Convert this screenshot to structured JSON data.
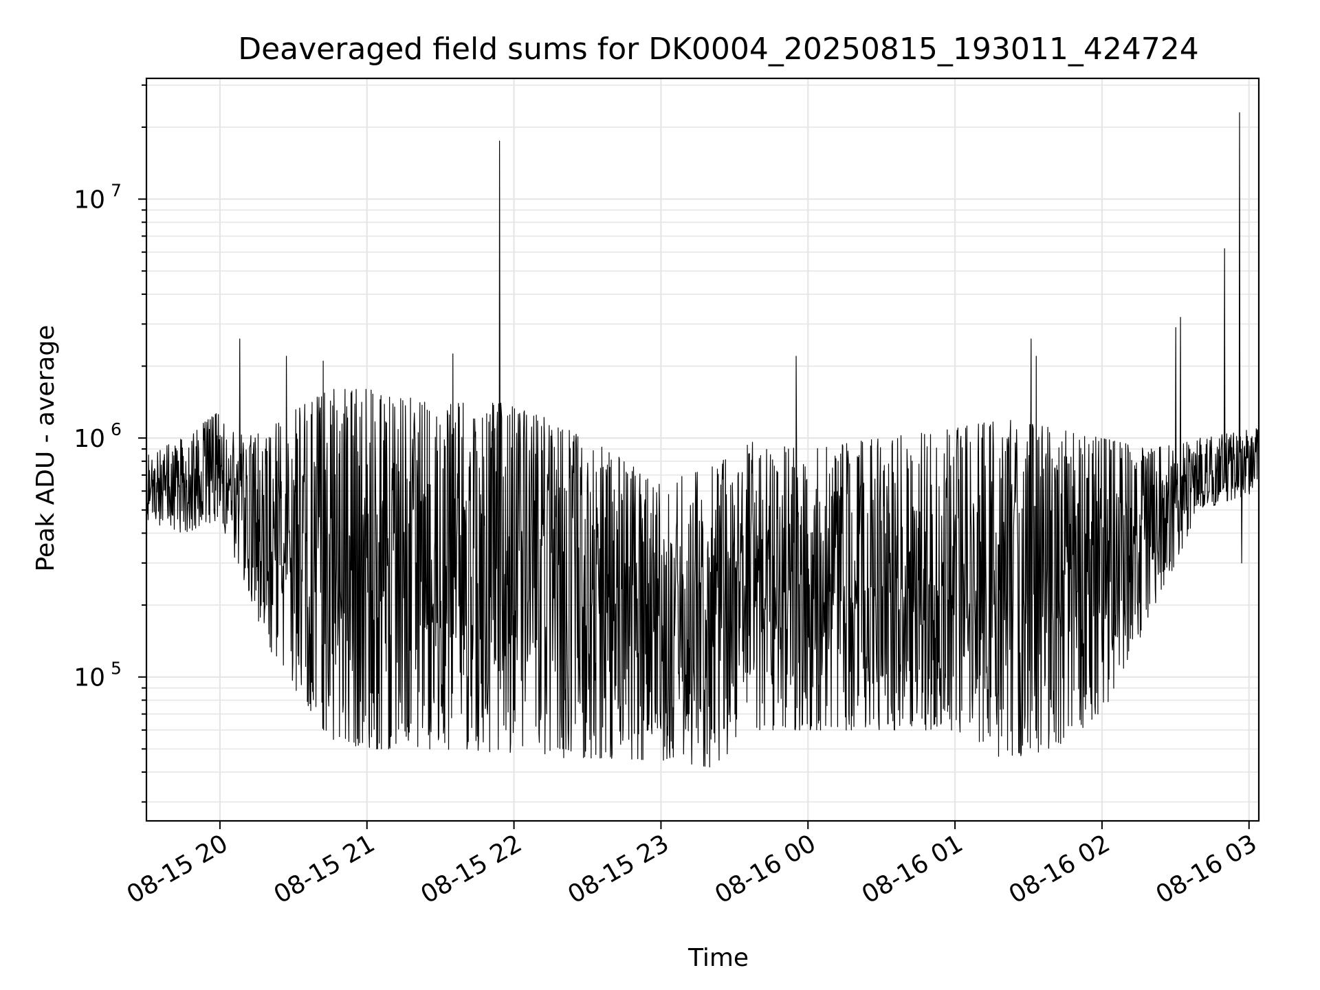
{
  "chart_data": {
    "type": "line",
    "title": "Deaveraged field sums for DK0004_20250815_193011_424724",
    "xlabel": "Time",
    "ylabel": "Peak ADU - average",
    "xlim": [
      "2025-08-15 19:30",
      "2025-08-16 03:04"
    ],
    "ylim": [
      25000,
      32000000
    ],
    "yscale": "log",
    "grid": true,
    "line_color": "#000000",
    "grid_color": "#e6e6e6",
    "x_ticks": [
      {
        "t": "2025-08-15 20:00",
        "label": "08-15 20"
      },
      {
        "t": "2025-08-15 21:00",
        "label": "08-15 21"
      },
      {
        "t": "2025-08-15 22:00",
        "label": "08-15 22"
      },
      {
        "t": "2025-08-15 23:00",
        "label": "08-15 23"
      },
      {
        "t": "2025-08-16 00:00",
        "label": "08-16 00"
      },
      {
        "t": "2025-08-16 01:00",
        "label": "08-16 01"
      },
      {
        "t": "2025-08-16 02:00",
        "label": "08-16 02"
      },
      {
        "t": "2025-08-16 03:00",
        "label": "08-16 03"
      }
    ],
    "y_ticks": [
      {
        "value": 100000,
        "base": "10",
        "exp": "5"
      },
      {
        "value": 1000000,
        "base": "10",
        "exp": "6"
      },
      {
        "value": 10000000,
        "base": "10",
        "exp": "7"
      }
    ],
    "series": [
      {
        "envelope": [
          {
            "t": "2025-08-15 19:30",
            "lo": 450000,
            "hi": 850000
          },
          {
            "t": "2025-08-15 19:45",
            "lo": 400000,
            "hi": 1000000
          },
          {
            "t": "2025-08-15 20:00",
            "lo": 450000,
            "hi": 1300000
          },
          {
            "t": "2025-08-15 20:10",
            "lo": 250000,
            "hi": 1000000
          },
          {
            "t": "2025-08-15 20:20",
            "lo": 130000,
            "hi": 1100000
          },
          {
            "t": "2025-08-15 20:30",
            "lo": 90000,
            "hi": 1300000
          },
          {
            "t": "2025-08-15 20:45",
            "lo": 55000,
            "hi": 1600000
          },
          {
            "t": "2025-08-15 21:00",
            "lo": 50000,
            "hi": 1600000
          },
          {
            "t": "2025-08-15 21:30",
            "lo": 50000,
            "hi": 1400000
          },
          {
            "t": "2025-08-15 22:00",
            "lo": 48000,
            "hi": 1400000
          },
          {
            "t": "2025-08-15 22:30",
            "lo": 45000,
            "hi": 1000000
          },
          {
            "t": "2025-08-15 23:00",
            "lo": 45000,
            "hi": 650000
          },
          {
            "t": "2025-08-15 23:20",
            "lo": 42000,
            "hi": 750000
          },
          {
            "t": "2025-08-15 23:40",
            "lo": 60000,
            "hi": 1000000
          },
          {
            "t": "2025-08-16 00:00",
            "lo": 60000,
            "hi": 900000
          },
          {
            "t": "2025-08-16 00:30",
            "lo": 60000,
            "hi": 1000000
          },
          {
            "t": "2025-08-16 01:00",
            "lo": 60000,
            "hi": 1100000
          },
          {
            "t": "2025-08-16 01:20",
            "lo": 45000,
            "hi": 1200000
          },
          {
            "t": "2025-08-16 01:40",
            "lo": 50000,
            "hi": 1100000
          },
          {
            "t": "2025-08-16 02:00",
            "lo": 70000,
            "hi": 1000000
          },
          {
            "t": "2025-08-16 02:20",
            "lo": 180000,
            "hi": 900000
          },
          {
            "t": "2025-08-16 02:40",
            "lo": 500000,
            "hi": 1000000
          },
          {
            "t": "2025-08-16 03:04",
            "lo": 600000,
            "hi": 1100000
          }
        ],
        "spikes": [
          {
            "t": "2025-08-15 20:08",
            "value": 2600000
          },
          {
            "t": "2025-08-15 20:27",
            "value": 2200000
          },
          {
            "t": "2025-08-15 20:42",
            "value": 2100000
          },
          {
            "t": "2025-08-15 21:35",
            "value": 2250000
          },
          {
            "t": "2025-08-15 21:54",
            "value": 17500000
          },
          {
            "t": "2025-08-15 23:55",
            "value": 2200000
          },
          {
            "t": "2025-08-16 01:31",
            "value": 2600000
          },
          {
            "t": "2025-08-16 01:33",
            "value": 2200000
          },
          {
            "t": "2025-08-16 02:30",
            "value": 2900000
          },
          {
            "t": "2025-08-16 02:32",
            "value": 3200000
          },
          {
            "t": "2025-08-16 02:50",
            "value": 6200000
          },
          {
            "t": "2025-08-16 02:56",
            "value": 23000000
          },
          {
            "t": "2025-08-16 02:57",
            "value": 300000
          }
        ]
      }
    ]
  }
}
